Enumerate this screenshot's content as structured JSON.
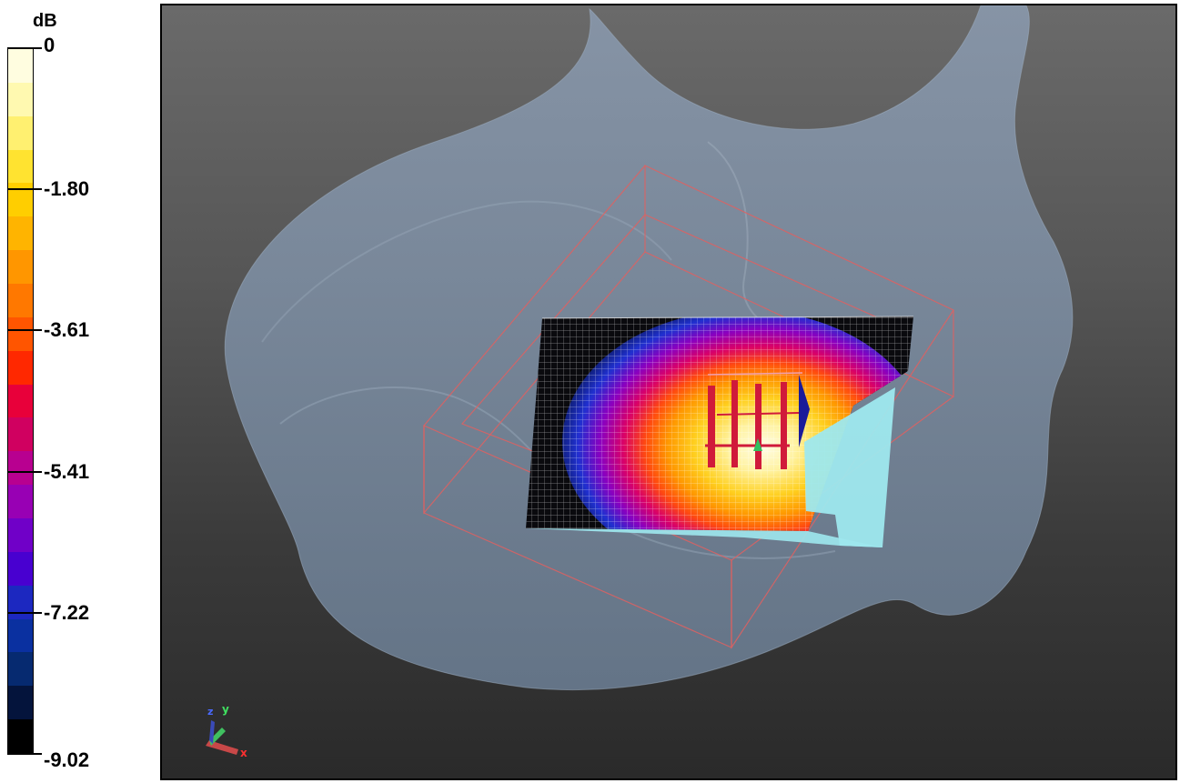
{
  "colorbar": {
    "unit": "dB",
    "labels": [
      "0",
      "-1.80",
      "-3.61",
      "-5.41",
      "-7.22",
      "-9.02"
    ],
    "colors": [
      "#fffde0",
      "#fff9b0",
      "#fff070",
      "#ffe330",
      "#ffce00",
      "#ffb400",
      "#ff9600",
      "#ff7800",
      "#ff5500",
      "#ff2800",
      "#e8003a",
      "#d00060",
      "#b80090",
      "#9800b4",
      "#7000c8",
      "#4800d0",
      "#1c28c0",
      "#0a30a0",
      "#062a70",
      "#04143c",
      "#000000"
    ]
  },
  "axes": {
    "x": "x",
    "y": "y",
    "z": "z"
  },
  "colors": {
    "surface": "#7f93a8",
    "box_edges": "#e06060",
    "panel_cyan": "#9ee8ee"
  }
}
